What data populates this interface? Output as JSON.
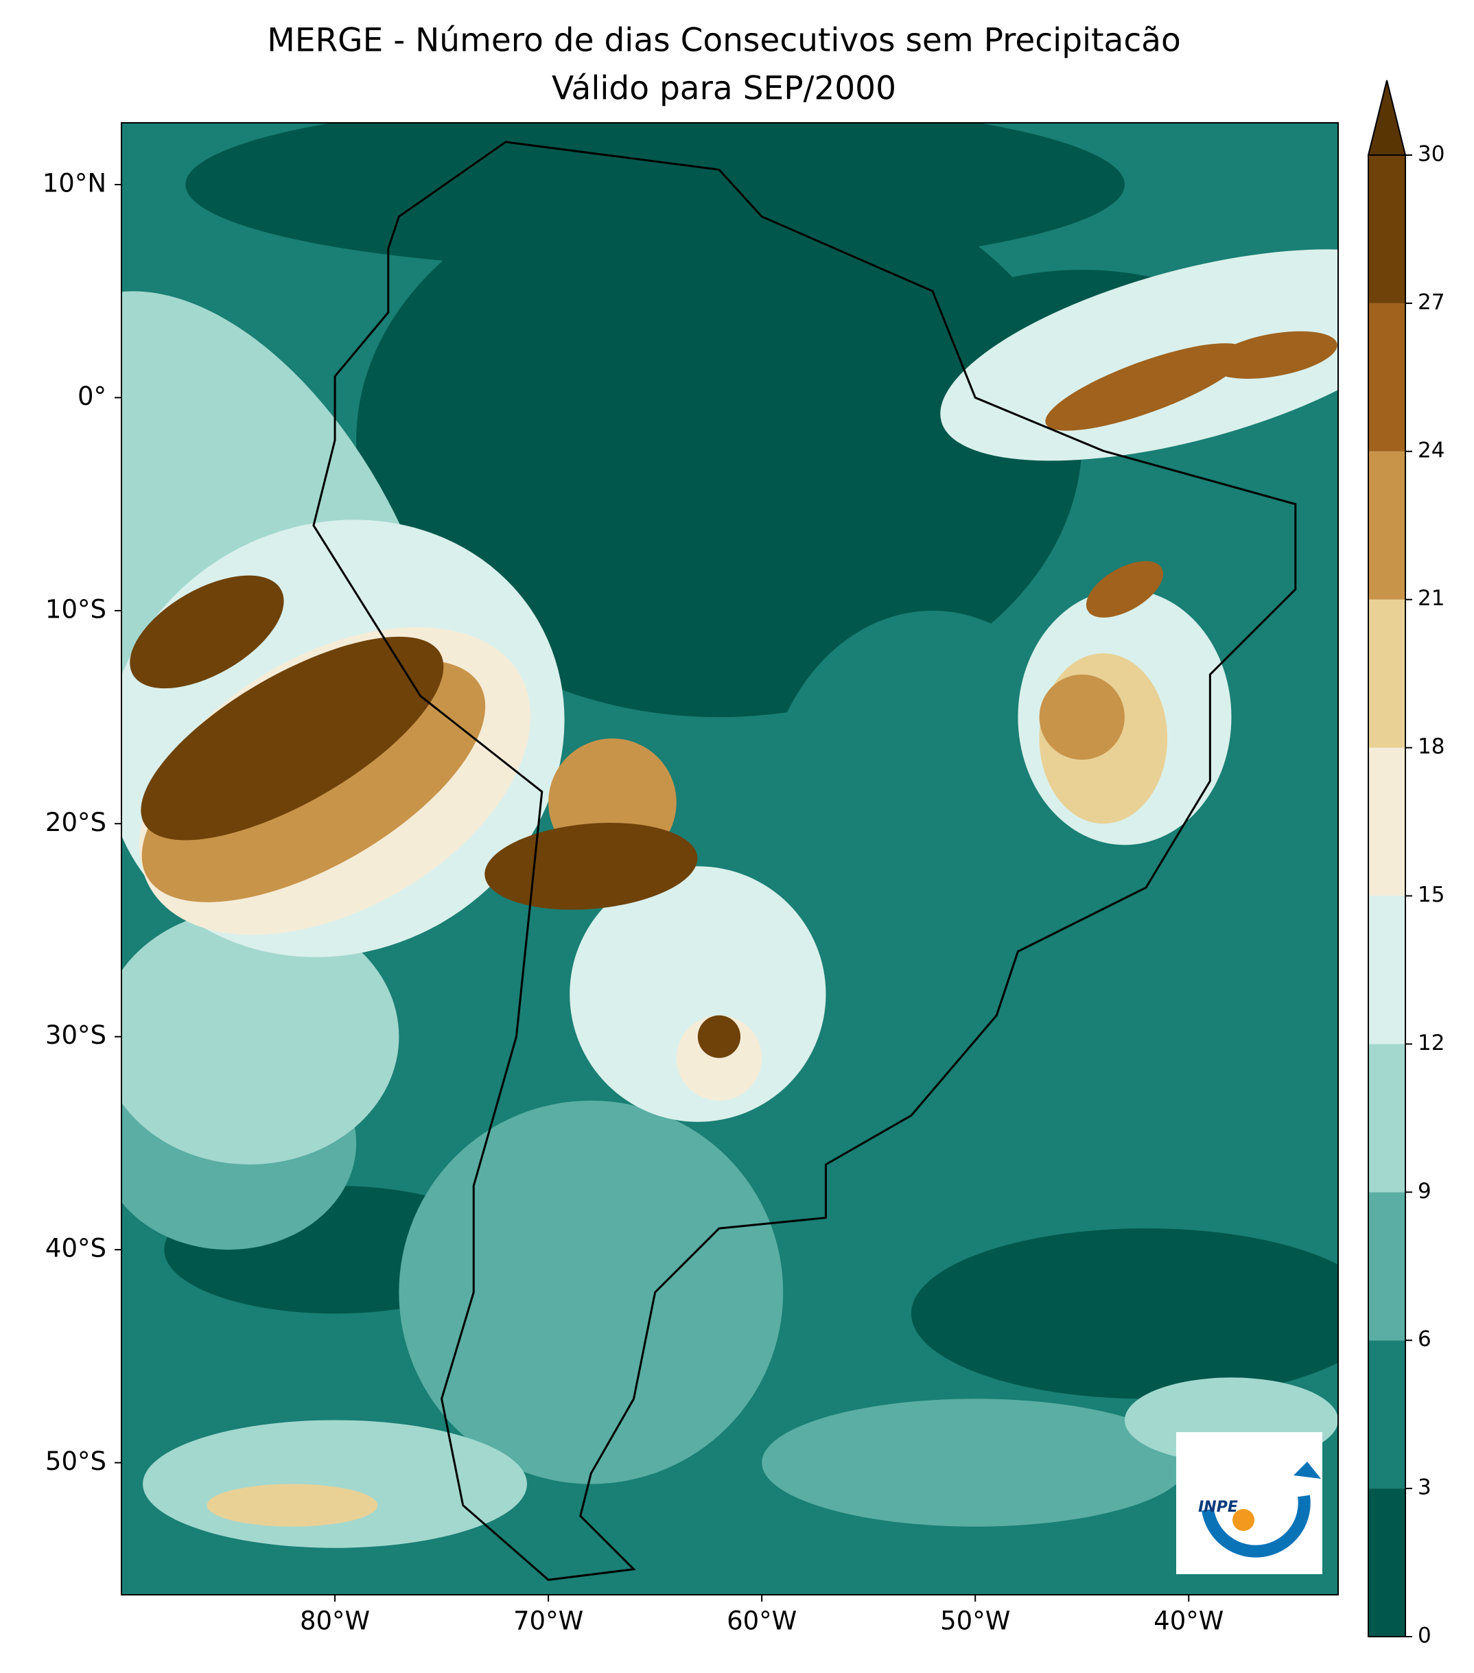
{
  "chart_data": {
    "type": "contour_map",
    "title": "MERGE - Número de dias Consecutivos sem Precipitacão",
    "subtitle": "Válido para SEP/2000",
    "xlim": [
      -90,
      -33
    ],
    "ylim": [
      -56.2,
      12.9
    ],
    "xticks": [
      {
        "value": -80,
        "label": "80°W"
      },
      {
        "value": -70,
        "label": "70°W"
      },
      {
        "value": -60,
        "label": "60°W"
      },
      {
        "value": -50,
        "label": "50°W"
      },
      {
        "value": -40,
        "label": "40°W"
      }
    ],
    "yticks": [
      {
        "value": 10,
        "label": "10°N"
      },
      {
        "value": 0,
        "label": "0°"
      },
      {
        "value": -10,
        "label": "10°S"
      },
      {
        "value": -20,
        "label": "20°S"
      },
      {
        "value": -30,
        "label": "30°S"
      },
      {
        "value": -40,
        "label": "40°S"
      },
      {
        "value": -50,
        "label": "50°S"
      }
    ],
    "colorbar": {
      "levels": [
        0,
        3,
        6,
        9,
        12,
        15,
        18,
        21,
        24,
        27,
        30
      ],
      "colors": [
        "#01574b",
        "#1a7f74",
        "#5aaea3",
        "#a3d8cf",
        "#daf0ec",
        "#f5ecd8",
        "#e9d196",
        "#c8944a",
        "#a0621d",
        "#6e4209"
      ],
      "extend_color": "#5a3504"
    },
    "logo": "INPE"
  }
}
